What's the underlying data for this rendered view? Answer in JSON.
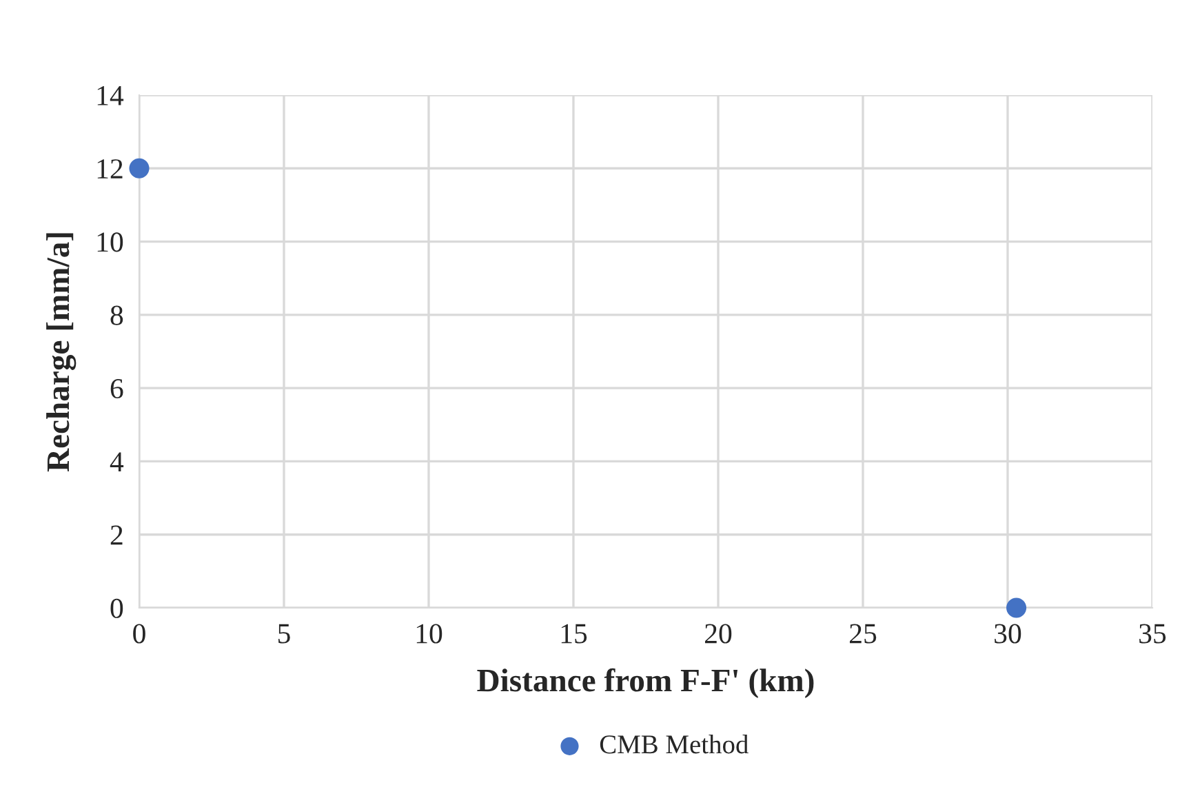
{
  "chart_data": {
    "type": "scatter",
    "xlabel": "Distance from F-F' (km)",
    "ylabel": "Recharge [mm/a]",
    "x": [
      0,
      30.3
    ],
    "series": [
      {
        "name": "CMB Method",
        "color": "#4472c4",
        "values": [
          12,
          0
        ]
      }
    ],
    "xlim": [
      0,
      35
    ],
    "xticks": [
      0,
      5,
      10,
      15,
      20,
      25,
      30,
      35
    ],
    "ylim": [
      0,
      14
    ],
    "yticks": [
      0,
      2,
      4,
      6,
      8,
      10,
      12,
      14
    ],
    "grid": true,
    "legend": "bottom",
    "marker": "circle"
  }
}
